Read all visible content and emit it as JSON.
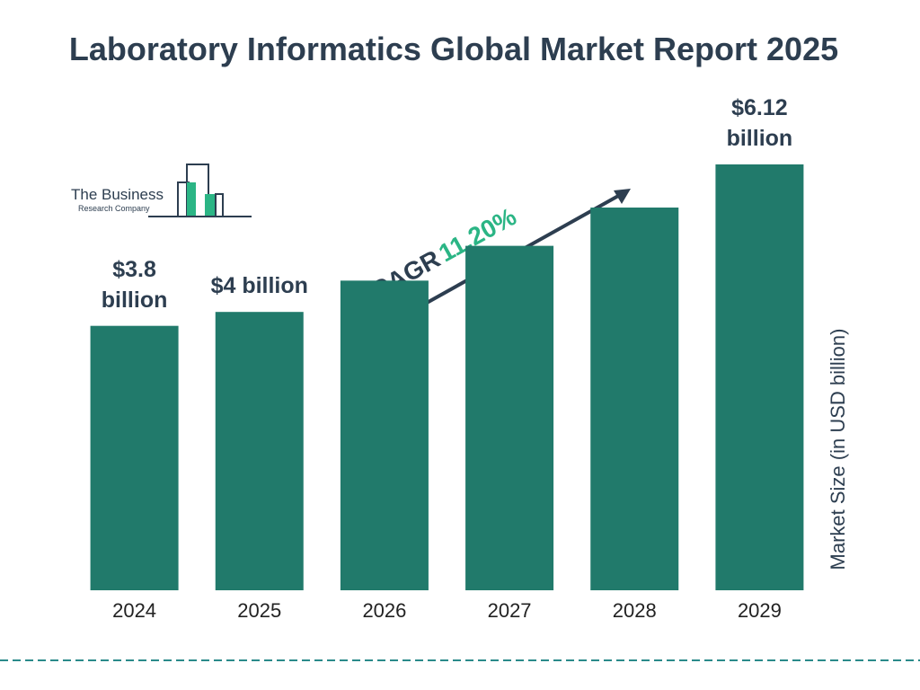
{
  "chart_data": {
    "type": "bar",
    "title": "Laboratory Informatics Global Market Report 2025",
    "y_label": "Market Size (in USD billion)",
    "annotations": [
      "CAGR",
      "11.20%"
    ],
    "categories": [
      "2024",
      "2025",
      "2026",
      "2027",
      "2028",
      "2029"
    ],
    "values": [
      3.8,
      4,
      4.45,
      4.95,
      5.5,
      6.12
    ],
    "value_labels": [
      "$3.8 billion",
      "$4 billion",
      null,
      null,
      null,
      "$6.12 billion"
    ],
    "color": "#217a6b"
  },
  "logo": {
    "name": "The Business",
    "subname": "Research Company"
  }
}
